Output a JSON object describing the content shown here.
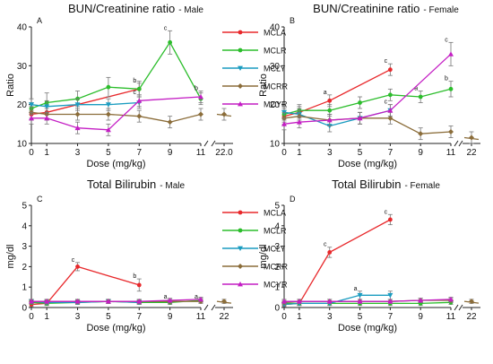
{
  "chart_data": [
    {
      "type": "line",
      "panel": "A",
      "title": "BUN/Creatinine ratio",
      "subtitle": "Male",
      "xlabel": "Dose (mg/kg)",
      "ylabel": "Ratio",
      "ylim": [
        10,
        40
      ],
      "yticks": [
        "10",
        "20",
        "30",
        "40"
      ],
      "xticks": [
        "0",
        "1",
        "3",
        "5",
        "7",
        "9",
        "11",
        "22.0"
      ],
      "grid": false,
      "legend": "right",
      "series": [
        {
          "name": "MCLA",
          "color": "#e8282b",
          "marker": "dot",
          "x": [
            0,
            1,
            7
          ],
          "y": [
            17.5,
            18,
            24
          ],
          "err": [
            1.5,
            1.5,
            1.5
          ],
          "labels": [
            null,
            null,
            "b"
          ]
        },
        {
          "name": "MCLR",
          "color": "#2bbd2b",
          "marker": "dot",
          "x": [
            0,
            1,
            3,
            5,
            7,
            9,
            11
          ],
          "y": [
            19,
            20.5,
            21.5,
            24.5,
            24,
            36,
            21.5
          ],
          "err": [
            1.5,
            2.5,
            2,
            2.5,
            2,
            3,
            1.5
          ],
          "labels": [
            null,
            null,
            null,
            null,
            null,
            "c",
            null
          ]
        },
        {
          "name": "MCLY",
          "color": "#1a9cc0",
          "marker": "tri-down",
          "x": [
            0,
            1,
            3,
            5,
            7
          ],
          "y": [
            20,
            19.5,
            20,
            20,
            20.5
          ],
          "err": [
            1.5,
            1.5,
            1.5,
            1.5,
            1.5
          ],
          "labels": [
            null,
            null,
            null,
            null,
            null
          ]
        },
        {
          "name": "MCRR",
          "color": "#8b6d3a",
          "marker": "diamond",
          "x": [
            0,
            1,
            3,
            5,
            7,
            9,
            11,
            22
          ],
          "y": [
            18,
            17.5,
            17.5,
            17.5,
            17,
            15.5,
            17.5,
            17.5
          ],
          "err": [
            1.5,
            1.5,
            1.5,
            1.5,
            1.5,
            1.5,
            1.5,
            1.5
          ],
          "labels": [
            null,
            null,
            null,
            null,
            null,
            null,
            null,
            null
          ]
        },
        {
          "name": "MCYR",
          "color": "#c41ec4",
          "marker": "tri-up",
          "x": [
            0,
            1,
            3,
            5,
            7,
            11
          ],
          "y": [
            16.5,
            16.5,
            14,
            13.5,
            21,
            22
          ],
          "err": [
            1.5,
            1.5,
            1.5,
            1.5,
            1.5,
            1.5
          ],
          "labels": [
            null,
            null,
            null,
            null,
            "c",
            "b"
          ]
        }
      ]
    },
    {
      "type": "line",
      "panel": "B",
      "title": "BUN/Creatinine ratio",
      "subtitle": "Female",
      "xlabel": "Dose (mg/kg)",
      "ylabel": "Ratio",
      "ylim": [
        10,
        40
      ],
      "yticks": [
        "10",
        "20",
        "30",
        "40"
      ],
      "xticks": [
        "0",
        "1",
        "3",
        "5",
        "7",
        "9",
        "11",
        "22"
      ],
      "grid": false,
      "legend": "none",
      "series": [
        {
          "name": "MCLA",
          "color": "#e8282b",
          "marker": "dot",
          "x": [
            0,
            1,
            3,
            7
          ],
          "y": [
            17,
            18,
            21,
            29
          ],
          "err": [
            1.5,
            1.5,
            1.5,
            1.5
          ],
          "labels": [
            null,
            null,
            "a",
            "c"
          ]
        },
        {
          "name": "MCLR",
          "color": "#2bbd2b",
          "marker": "dot",
          "x": [
            0,
            1,
            3,
            5,
            7,
            9,
            11
          ],
          "y": [
            17.5,
            18.5,
            18.5,
            20.5,
            22.5,
            22,
            24
          ],
          "err": [
            1.5,
            1.5,
            1.5,
            1.5,
            1.5,
            1.5,
            2
          ],
          "labels": [
            null,
            null,
            null,
            null,
            null,
            "a",
            "b"
          ]
        },
        {
          "name": "MCLY",
          "color": "#1a9cc0",
          "marker": "tri-down",
          "x": [
            0,
            1,
            3,
            5,
            7
          ],
          "y": [
            18,
            17.5,
            14.5,
            16.5,
            18.5
          ],
          "err": [
            1.5,
            1.5,
            1.5,
            1.5,
            1.5
          ],
          "labels": [
            null,
            null,
            null,
            null,
            null
          ]
        },
        {
          "name": "MCRR",
          "color": "#8b6d3a",
          "marker": "diamond",
          "x": [
            0,
            1,
            3,
            5,
            7,
            9,
            11,
            22
          ],
          "y": [
            16.5,
            17,
            16,
            16.5,
            16.5,
            12.5,
            13,
            11.5
          ],
          "err": [
            1.5,
            1.5,
            1.5,
            1.5,
            1.5,
            1.5,
            1.5,
            1.5
          ],
          "labels": [
            null,
            null,
            null,
            null,
            null,
            null,
            null,
            null
          ]
        },
        {
          "name": "MCYR",
          "color": "#c41ec4",
          "marker": "tri-up",
          "x": [
            0,
            1,
            3,
            5,
            7,
            11
          ],
          "y": [
            15,
            15.5,
            16,
            16.5,
            18.5,
            33
          ],
          "err": [
            1.5,
            1.5,
            1.5,
            1.5,
            1.5,
            3
          ],
          "labels": [
            null,
            null,
            null,
            null,
            "c",
            "c"
          ]
        }
      ]
    },
    {
      "type": "line",
      "panel": "C",
      "title": "Total Bilirubin",
      "subtitle": "Male",
      "xlabel": "Dose (mg/kg)",
      "ylabel": "mg/dl",
      "ylim": [
        0,
        5
      ],
      "yticks": [
        "0",
        "1",
        "2",
        "3",
        "4",
        "5"
      ],
      "xticks": [
        "0",
        "1",
        "3",
        "5",
        "7",
        "9",
        "11",
        "22"
      ],
      "grid": false,
      "legend": "right",
      "series": [
        {
          "name": "MCLA",
          "color": "#e8282b",
          "marker": "dot",
          "x": [
            0,
            1,
            3,
            7
          ],
          "y": [
            0.15,
            0.2,
            2.0,
            1.1
          ],
          "err": [
            0.1,
            0.1,
            0.2,
            0.3
          ],
          "labels": [
            null,
            null,
            "c",
            "b"
          ]
        },
        {
          "name": "MCLR",
          "color": "#2bbd2b",
          "marker": "dot",
          "x": [
            0,
            1,
            3,
            5,
            7,
            9,
            11
          ],
          "y": [
            0.25,
            0.2,
            0.25,
            0.3,
            0.25,
            0.25,
            0.35
          ],
          "err": [
            0.1,
            0.1,
            0.1,
            0.1,
            0.1,
            0.1,
            0.1
          ],
          "labels": [
            null,
            null,
            null,
            null,
            null,
            null,
            null
          ]
        },
        {
          "name": "MCLY",
          "color": "#1a9cc0",
          "marker": "tri-down",
          "x": [
            0,
            1,
            3,
            5,
            7
          ],
          "y": [
            0.3,
            0.25,
            0.25,
            0.3,
            0.25
          ],
          "err": [
            0.1,
            0.1,
            0.1,
            0.1,
            0.1
          ],
          "labels": [
            null,
            null,
            null,
            null,
            null
          ]
        },
        {
          "name": "MCRR",
          "color": "#8b6d3a",
          "marker": "diamond",
          "x": [
            0,
            1,
            3,
            5,
            7,
            9,
            11,
            22
          ],
          "y": [
            0.3,
            0.3,
            0.3,
            0.3,
            0.3,
            0.3,
            0.3,
            0.3
          ],
          "err": [
            0.1,
            0.1,
            0.1,
            0.1,
            0.1,
            0.1,
            0.1,
            0.1
          ],
          "labels": [
            null,
            null,
            null,
            null,
            null,
            "a",
            "a",
            null
          ]
        },
        {
          "name": "MCYR",
          "color": "#c41ec4",
          "marker": "tri-up",
          "x": [
            0,
            1,
            3,
            5,
            7,
            9,
            11
          ],
          "y": [
            0.3,
            0.3,
            0.3,
            0.3,
            0.3,
            0.35,
            0.4
          ],
          "err": [
            0.1,
            0.1,
            0.1,
            0.1,
            0.1,
            0.1,
            0.1
          ],
          "labels": [
            null,
            null,
            null,
            null,
            null,
            null,
            null
          ]
        }
      ]
    },
    {
      "type": "line",
      "panel": "D",
      "title": "Total Bilirubin",
      "subtitle": "Female",
      "xlabel": "Dose (mg/kg)",
      "ylabel": "mg/dl",
      "ylim": [
        0,
        5
      ],
      "yticks": [
        "0",
        "1",
        "2",
        "3",
        "4",
        "5"
      ],
      "xticks": [
        "0",
        "1",
        "3",
        "5",
        "7",
        "9",
        "11",
        "22"
      ],
      "grid": false,
      "legend": "none",
      "series": [
        {
          "name": "MCLA",
          "color": "#e8282b",
          "marker": "dot",
          "x": [
            0,
            1,
            3,
            7
          ],
          "y": [
            0.15,
            0.2,
            2.7,
            4.3
          ],
          "err": [
            0.1,
            0.1,
            0.25,
            0.25
          ],
          "labels": [
            null,
            null,
            "c",
            "c"
          ]
        },
        {
          "name": "MCLR",
          "color": "#2bbd2b",
          "marker": "dot",
          "x": [
            0,
            1,
            3,
            5,
            7,
            9,
            11
          ],
          "y": [
            0.2,
            0.2,
            0.2,
            0.2,
            0.2,
            0.2,
            0.25
          ],
          "err": [
            0.1,
            0.1,
            0.1,
            0.1,
            0.1,
            0.1,
            0.1
          ],
          "labels": [
            null,
            null,
            null,
            null,
            null,
            null,
            null
          ]
        },
        {
          "name": "MCLY",
          "color": "#1a9cc0",
          "marker": "tri-down",
          "x": [
            0,
            1,
            3,
            5,
            7
          ],
          "y": [
            0.15,
            0.2,
            0.2,
            0.6,
            0.6
          ],
          "err": [
            0.1,
            0.1,
            0.1,
            0.2,
            0.2
          ],
          "labels": [
            null,
            null,
            null,
            "a",
            null
          ]
        },
        {
          "name": "MCRR",
          "color": "#8b6d3a",
          "marker": "diamond",
          "x": [
            0,
            1,
            3,
            5,
            7,
            9,
            11,
            22
          ],
          "y": [
            0.25,
            0.3,
            0.3,
            0.3,
            0.3,
            0.35,
            0.35,
            0.3
          ],
          "err": [
            0.1,
            0.1,
            0.1,
            0.1,
            0.1,
            0.1,
            0.1,
            0.1
          ],
          "labels": [
            null,
            null,
            null,
            null,
            null,
            null,
            null,
            null
          ]
        },
        {
          "name": "MCYR",
          "color": "#c41ec4",
          "marker": "tri-up",
          "x": [
            0,
            1,
            3,
            5,
            7,
            9,
            11
          ],
          "y": [
            0.3,
            0.3,
            0.3,
            0.3,
            0.3,
            0.35,
            0.4
          ],
          "err": [
            0.1,
            0.1,
            0.1,
            0.1,
            0.1,
            0.1,
            0.1
          ],
          "labels": [
            null,
            null,
            null,
            null,
            null,
            null,
            null
          ]
        }
      ]
    }
  ]
}
